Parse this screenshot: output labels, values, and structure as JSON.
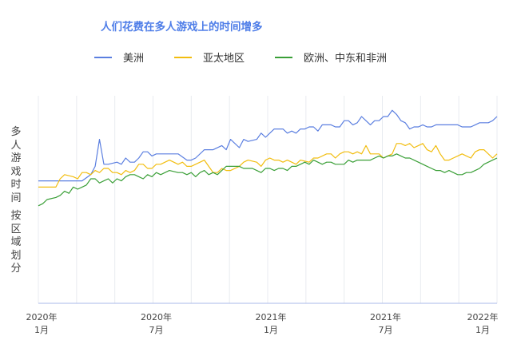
{
  "chart_data": {
    "type": "line",
    "title": "人们花费在多人游戏上的时间增多",
    "ylabel": "多人游戏时间 按区域划分",
    "ylabel_lines": [
      "多人游戏时间",
      "按区域划分"
    ],
    "xlabel": "",
    "x_ticks": [
      "2020年 1月",
      "2020年 7月",
      "2021年 1月",
      "2021年 7月",
      "2022年 1月"
    ],
    "x_range": [
      0,
      105
    ],
    "ylim": [
      0,
      100
    ],
    "grid": "vertical",
    "legend_placement": "top",
    "series": [
      {
        "name": "美洲",
        "color": "#5b7fe0",
        "values": [
          [
            0,
            59
          ],
          [
            2,
            59
          ],
          [
            10,
            59
          ],
          [
            12,
            62
          ],
          [
            13,
            66
          ],
          [
            14,
            79
          ],
          [
            15,
            67
          ],
          [
            16,
            67
          ],
          [
            18,
            68
          ],
          [
            19,
            67
          ],
          [
            20,
            70
          ],
          [
            21,
            68
          ],
          [
            22,
            68
          ],
          [
            23,
            70
          ],
          [
            24,
            73
          ],
          [
            25,
            73
          ],
          [
            26,
            71
          ],
          [
            27,
            72
          ],
          [
            28,
            72
          ],
          [
            32,
            72
          ],
          [
            34,
            69
          ],
          [
            35,
            69
          ],
          [
            36,
            70
          ],
          [
            38,
            74
          ],
          [
            40,
            74
          ],
          [
            42,
            76
          ],
          [
            43,
            74
          ],
          [
            44,
            79
          ],
          [
            46,
            75
          ],
          [
            47,
            79
          ],
          [
            48,
            78
          ],
          [
            50,
            79
          ],
          [
            51,
            82
          ],
          [
            52,
            80
          ],
          [
            53,
            82
          ],
          [
            54,
            84
          ],
          [
            56,
            84
          ],
          [
            57,
            82
          ],
          [
            58,
            83
          ],
          [
            59,
            82
          ],
          [
            60,
            84
          ],
          [
            61,
            84
          ],
          [
            62,
            85
          ],
          [
            63,
            85
          ],
          [
            64,
            83
          ],
          [
            65,
            86
          ],
          [
            67,
            86
          ],
          [
            68,
            85
          ],
          [
            69,
            85
          ],
          [
            70,
            88
          ],
          [
            71,
            88
          ],
          [
            72,
            86
          ],
          [
            73,
            87
          ],
          [
            74,
            90
          ],
          [
            75,
            88
          ],
          [
            76,
            86
          ],
          [
            77,
            88
          ],
          [
            78,
            88
          ],
          [
            79,
            90
          ],
          [
            80,
            90
          ],
          [
            81,
            93
          ],
          [
            82,
            91
          ],
          [
            83,
            88
          ],
          [
            84,
            87
          ],
          [
            85,
            84
          ],
          [
            86,
            85
          ],
          [
            87,
            85
          ],
          [
            88,
            86
          ],
          [
            89,
            85
          ],
          [
            90,
            85
          ],
          [
            91,
            86
          ],
          [
            92,
            86
          ],
          [
            96,
            86
          ],
          [
            97,
            85
          ],
          [
            99,
            85
          ],
          [
            100,
            86
          ],
          [
            101,
            87
          ],
          [
            103,
            87
          ],
          [
            104,
            88
          ],
          [
            105,
            90
          ]
        ]
      },
      {
        "name": "亚太地区",
        "color": "#f2bd0f",
        "values": [
          [
            0,
            56
          ],
          [
            4,
            56
          ],
          [
            5,
            60
          ],
          [
            6,
            62
          ],
          [
            8,
            61
          ],
          [
            9,
            60
          ],
          [
            10,
            63
          ],
          [
            11,
            63
          ],
          [
            12,
            62
          ],
          [
            13,
            64
          ],
          [
            14,
            63
          ],
          [
            15,
            65
          ],
          [
            16,
            65
          ],
          [
            17,
            63
          ],
          [
            18,
            63
          ],
          [
            19,
            62
          ],
          [
            20,
            64
          ],
          [
            21,
            63
          ],
          [
            22,
            64
          ],
          [
            23,
            67
          ],
          [
            24,
            67
          ],
          [
            25,
            65
          ],
          [
            26,
            65
          ],
          [
            27,
            67
          ],
          [
            28,
            67
          ],
          [
            29,
            68
          ],
          [
            30,
            69
          ],
          [
            31,
            68
          ],
          [
            32,
            67
          ],
          [
            33,
            68
          ],
          [
            34,
            66
          ],
          [
            35,
            66
          ],
          [
            36,
            67
          ],
          [
            37,
            68
          ],
          [
            38,
            69
          ],
          [
            39,
            66
          ],
          [
            40,
            63
          ],
          [
            41,
            63
          ],
          [
            42,
            65
          ],
          [
            43,
            64
          ],
          [
            44,
            64
          ],
          [
            45,
            65
          ],
          [
            46,
            66
          ],
          [
            47,
            68
          ],
          [
            48,
            69
          ],
          [
            50,
            68
          ],
          [
            51,
            66
          ],
          [
            52,
            69
          ],
          [
            53,
            70
          ],
          [
            54,
            69
          ],
          [
            55,
            69
          ],
          [
            56,
            68
          ],
          [
            57,
            69
          ],
          [
            58,
            68
          ],
          [
            59,
            67
          ],
          [
            60,
            69
          ],
          [
            62,
            68
          ],
          [
            63,
            70
          ],
          [
            64,
            70
          ],
          [
            66,
            72
          ],
          [
            67,
            72
          ],
          [
            68,
            70
          ],
          [
            69,
            72
          ],
          [
            70,
            73
          ],
          [
            71,
            73
          ],
          [
            72,
            72
          ],
          [
            73,
            73
          ],
          [
            74,
            72
          ],
          [
            75,
            76
          ],
          [
            76,
            72
          ],
          [
            78,
            72
          ],
          [
            79,
            70
          ],
          [
            80,
            71
          ],
          [
            81,
            72
          ],
          [
            82,
            77
          ],
          [
            83,
            77
          ],
          [
            84,
            76
          ],
          [
            85,
            77
          ],
          [
            86,
            75
          ],
          [
            87,
            76
          ],
          [
            88,
            77
          ],
          [
            89,
            74
          ],
          [
            90,
            73
          ],
          [
            91,
            76
          ],
          [
            92,
            72
          ],
          [
            93,
            69
          ],
          [
            94,
            69
          ],
          [
            95,
            70
          ],
          [
            96,
            71
          ],
          [
            97,
            72
          ],
          [
            98,
            71
          ],
          [
            99,
            70
          ],
          [
            100,
            73
          ],
          [
            101,
            74
          ],
          [
            102,
            74
          ],
          [
            103,
            72
          ],
          [
            104,
            70
          ],
          [
            105,
            72
          ]
        ]
      },
      {
        "name": "欧洲、中东和非洲",
        "color": "#3a9f37",
        "values": [
          [
            0,
            47
          ],
          [
            1,
            48
          ],
          [
            2,
            50
          ],
          [
            4,
            51
          ],
          [
            5,
            52
          ],
          [
            6,
            54
          ],
          [
            7,
            53
          ],
          [
            8,
            56
          ],
          [
            9,
            55
          ],
          [
            10,
            56
          ],
          [
            11,
            57
          ],
          [
            12,
            60
          ],
          [
            13,
            60
          ],
          [
            14,
            58
          ],
          [
            15,
            59
          ],
          [
            16,
            60
          ],
          [
            17,
            58
          ],
          [
            18,
            60
          ],
          [
            19,
            59
          ],
          [
            20,
            61
          ],
          [
            21,
            62
          ],
          [
            22,
            62
          ],
          [
            23,
            61
          ],
          [
            24,
            60
          ],
          [
            25,
            62
          ],
          [
            26,
            61
          ],
          [
            27,
            63
          ],
          [
            28,
            62
          ],
          [
            29,
            63
          ],
          [
            30,
            64
          ],
          [
            32,
            63
          ],
          [
            33,
            63
          ],
          [
            34,
            62
          ],
          [
            35,
            63
          ],
          [
            36,
            61
          ],
          [
            37,
            63
          ],
          [
            38,
            64
          ],
          [
            39,
            62
          ],
          [
            40,
            63
          ],
          [
            41,
            62
          ],
          [
            42,
            64
          ],
          [
            43,
            66
          ],
          [
            44,
            66
          ],
          [
            46,
            66
          ],
          [
            47,
            65
          ],
          [
            48,
            65
          ],
          [
            49,
            65
          ],
          [
            50,
            64
          ],
          [
            51,
            63
          ],
          [
            52,
            65
          ],
          [
            53,
            65
          ],
          [
            54,
            64
          ],
          [
            55,
            65
          ],
          [
            56,
            65
          ],
          [
            57,
            64
          ],
          [
            58,
            66
          ],
          [
            59,
            66
          ],
          [
            60,
            67
          ],
          [
            61,
            68
          ],
          [
            62,
            67
          ],
          [
            63,
            69
          ],
          [
            64,
            68
          ],
          [
            65,
            67
          ],
          [
            66,
            68
          ],
          [
            67,
            68
          ],
          [
            68,
            67
          ],
          [
            69,
            67
          ],
          [
            70,
            67
          ],
          [
            71,
            69
          ],
          [
            72,
            68
          ],
          [
            73,
            69
          ],
          [
            74,
            69
          ],
          [
            75,
            69
          ],
          [
            76,
            69
          ],
          [
            77,
            70
          ],
          [
            78,
            71
          ],
          [
            79,
            70
          ],
          [
            80,
            71
          ],
          [
            81,
            71
          ],
          [
            82,
            72
          ],
          [
            83,
            71
          ],
          [
            84,
            70
          ],
          [
            85,
            70
          ],
          [
            86,
            69
          ],
          [
            87,
            68
          ],
          [
            88,
            67
          ],
          [
            89,
            66
          ],
          [
            90,
            65
          ],
          [
            91,
            64
          ],
          [
            92,
            64
          ],
          [
            93,
            63
          ],
          [
            94,
            64
          ],
          [
            95,
            63
          ],
          [
            96,
            62
          ],
          [
            97,
            62
          ],
          [
            98,
            63
          ],
          [
            99,
            63
          ],
          [
            100,
            64
          ],
          [
            101,
            65
          ],
          [
            102,
            67
          ],
          [
            103,
            68
          ],
          [
            104,
            69
          ],
          [
            105,
            70
          ]
        ]
      }
    ]
  }
}
